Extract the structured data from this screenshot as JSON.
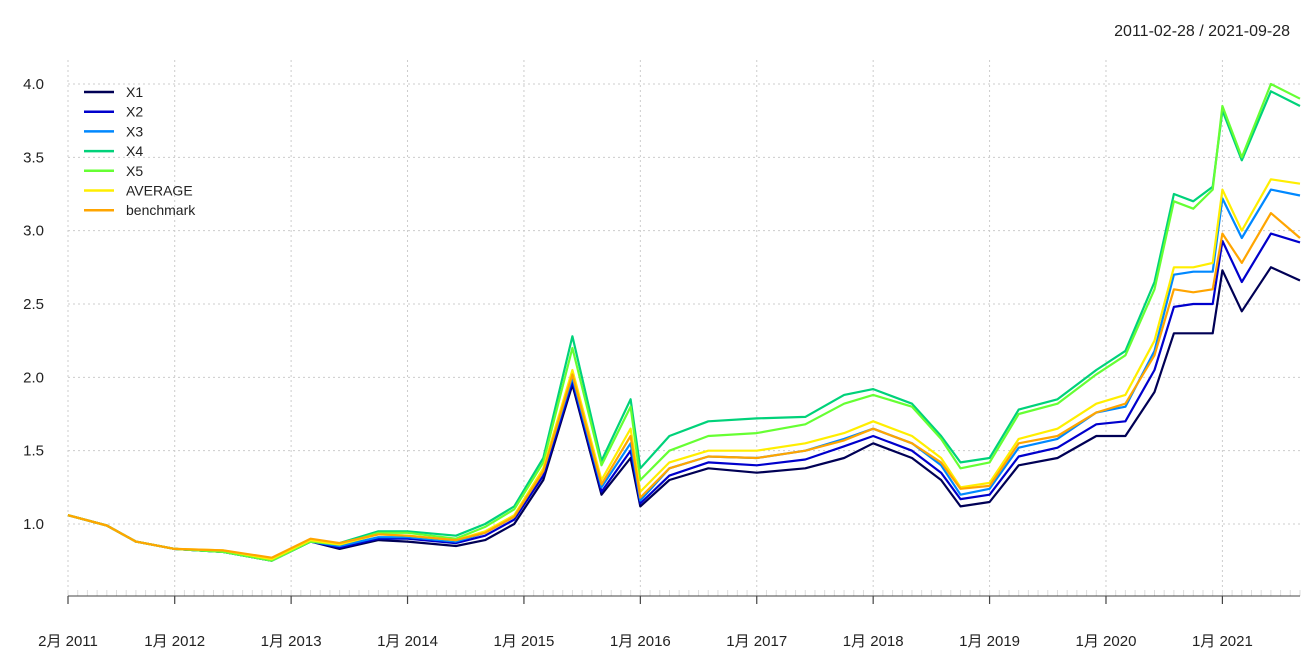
{
  "chart_data": {
    "type": "line",
    "date_range": "2011-02-28 / 2021-09-28",
    "ylim": [
      0.75,
      4.1
    ],
    "y_ticks": [
      "1.0",
      "1.5",
      "2.0",
      "2.5",
      "3.0",
      "3.5",
      "4.0"
    ],
    "x_ticks": [
      "2月 2011",
      "1月 2012",
      "1月 2013",
      "1月 2014",
      "1月 2015",
      "1月 2016",
      "1月 2017",
      "1月 2018",
      "1月 2019",
      "1月 2020",
      "1月 2021"
    ],
    "x_tick_dates": [
      "2011-02",
      "2012-01",
      "2013-01",
      "2014-01",
      "2015-01",
      "2016-01",
      "2017-01",
      "2018-01",
      "2019-01",
      "2020-01",
      "2021-01"
    ],
    "grid": true,
    "legend_position": "top-left",
    "x": [
      "2011-02",
      "2011-06",
      "2011-09",
      "2012-01",
      "2012-06",
      "2012-11",
      "2013-03",
      "2013-06",
      "2013-10",
      "2014-01",
      "2014-06",
      "2014-09",
      "2014-12",
      "2015-03",
      "2015-06",
      "2015-09",
      "2015-12",
      "2016-01",
      "2016-04",
      "2016-08",
      "2017-01",
      "2017-06",
      "2017-10",
      "2018-01",
      "2018-05",
      "2018-08",
      "2018-10",
      "2019-01",
      "2019-04",
      "2019-08",
      "2019-12",
      "2020-03",
      "2020-06",
      "2020-08",
      "2020-10",
      "2020-12",
      "2021-01",
      "2021-03",
      "2021-06",
      "2021-09"
    ],
    "series": [
      {
        "name": "X1",
        "color": "#000055",
        "values": [
          1.06,
          0.99,
          0.88,
          0.83,
          0.81,
          0.75,
          0.88,
          0.83,
          0.89,
          0.88,
          0.85,
          0.89,
          1.0,
          1.3,
          1.95,
          1.2,
          1.45,
          1.12,
          1.3,
          1.38,
          1.35,
          1.38,
          1.45,
          1.55,
          1.45,
          1.3,
          1.12,
          1.15,
          1.4,
          1.45,
          1.6,
          1.6,
          1.9,
          2.3,
          2.3,
          2.3,
          2.73,
          2.45,
          2.75,
          2.66
        ]
      },
      {
        "name": "X2",
        "color": "#0000CC",
        "values": [
          1.06,
          0.99,
          0.88,
          0.83,
          0.81,
          0.75,
          0.88,
          0.84,
          0.9,
          0.9,
          0.87,
          0.92,
          1.03,
          1.33,
          1.97,
          1.22,
          1.5,
          1.14,
          1.33,
          1.42,
          1.4,
          1.44,
          1.53,
          1.6,
          1.5,
          1.35,
          1.17,
          1.2,
          1.46,
          1.52,
          1.68,
          1.7,
          2.05,
          2.48,
          2.5,
          2.5,
          2.93,
          2.65,
          2.98,
          2.92
        ]
      },
      {
        "name": "X3",
        "color": "#0088FF",
        "values": [
          1.06,
          0.99,
          0.88,
          0.83,
          0.81,
          0.75,
          0.88,
          0.85,
          0.91,
          0.91,
          0.88,
          0.94,
          1.05,
          1.36,
          2.0,
          1.25,
          1.55,
          1.16,
          1.38,
          1.46,
          1.45,
          1.5,
          1.58,
          1.65,
          1.55,
          1.4,
          1.2,
          1.24,
          1.52,
          1.58,
          1.76,
          1.8,
          2.18,
          2.7,
          2.72,
          2.72,
          3.22,
          2.95,
          3.28,
          3.24
        ]
      },
      {
        "name": "X4",
        "color": "#00D27A",
        "values": [
          1.06,
          0.99,
          0.88,
          0.83,
          0.81,
          0.75,
          0.88,
          0.87,
          0.95,
          0.95,
          0.92,
          1.0,
          1.12,
          1.45,
          2.28,
          1.43,
          1.85,
          1.38,
          1.6,
          1.7,
          1.72,
          1.73,
          1.88,
          1.92,
          1.82,
          1.6,
          1.42,
          1.45,
          1.78,
          1.85,
          2.05,
          2.18,
          2.65,
          3.25,
          3.2,
          3.3,
          3.82,
          3.48,
          3.95,
          3.85
        ]
      },
      {
        "name": "X5",
        "color": "#66FF33",
        "values": [
          1.06,
          0.99,
          0.88,
          0.83,
          0.81,
          0.75,
          0.88,
          0.86,
          0.94,
          0.94,
          0.9,
          0.98,
          1.1,
          1.42,
          2.2,
          1.4,
          1.8,
          1.3,
          1.5,
          1.6,
          1.62,
          1.68,
          1.82,
          1.88,
          1.8,
          1.58,
          1.38,
          1.42,
          1.75,
          1.82,
          2.02,
          2.15,
          2.6,
          3.2,
          3.15,
          3.28,
          3.85,
          3.5,
          4.0,
          3.9
        ]
      },
      {
        "name": "AVERAGE",
        "color": "#FFEE00",
        "values": [
          1.06,
          0.99,
          0.88,
          0.83,
          0.82,
          0.76,
          0.89,
          0.86,
          0.93,
          0.92,
          0.89,
          0.95,
          1.06,
          1.38,
          2.05,
          1.3,
          1.65,
          1.22,
          1.42,
          1.5,
          1.5,
          1.55,
          1.62,
          1.7,
          1.6,
          1.45,
          1.25,
          1.28,
          1.58,
          1.65,
          1.82,
          1.88,
          2.25,
          2.75,
          2.75,
          2.78,
          3.28,
          3.0,
          3.35,
          3.32
        ]
      },
      {
        "name": "benchmark",
        "color": "#FFA500",
        "values": [
          1.06,
          0.99,
          0.88,
          0.83,
          0.82,
          0.77,
          0.9,
          0.87,
          0.93,
          0.92,
          0.89,
          0.94,
          1.05,
          1.36,
          2.02,
          1.27,
          1.6,
          1.18,
          1.38,
          1.46,
          1.45,
          1.5,
          1.57,
          1.65,
          1.55,
          1.42,
          1.24,
          1.26,
          1.55,
          1.6,
          1.76,
          1.82,
          2.15,
          2.6,
          2.58,
          2.6,
          2.98,
          2.78,
          3.12,
          2.95
        ]
      }
    ]
  }
}
